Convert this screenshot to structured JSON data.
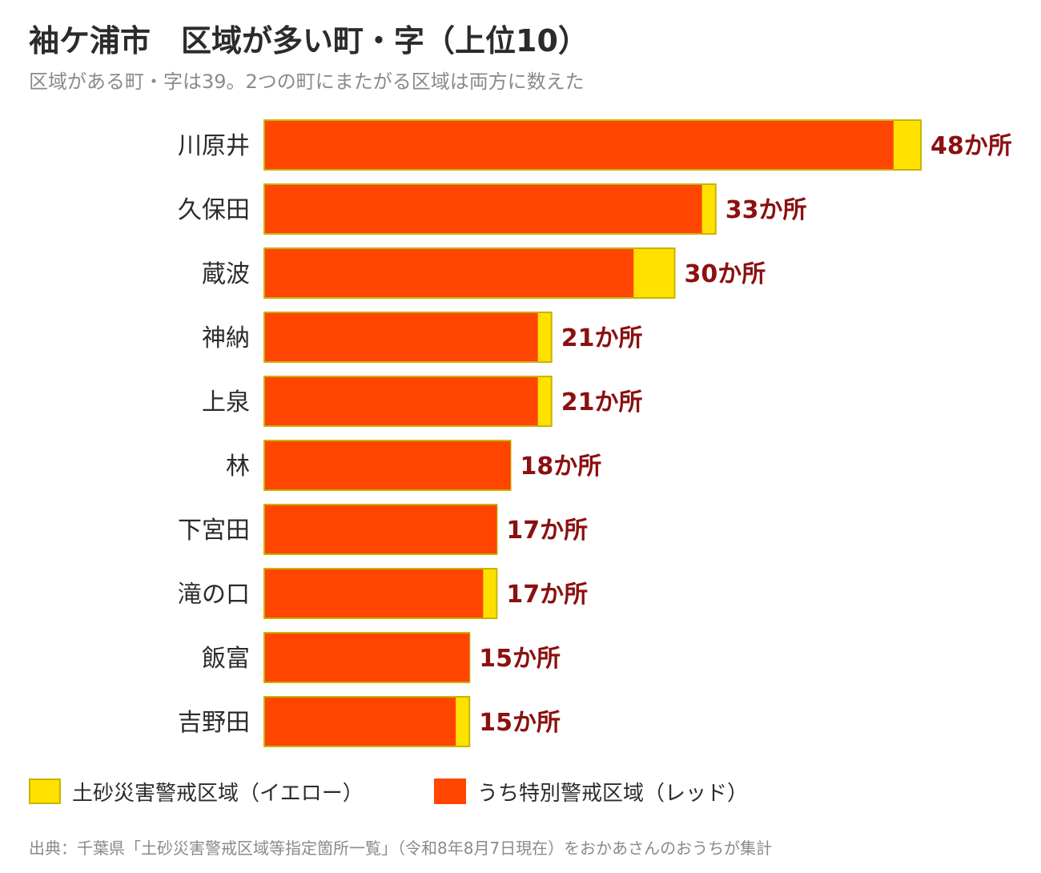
{
  "title": "袖ケ浦市　区域が多い町・字（上位10）",
  "subtitle": "区域がある町・字は39。2つの町にまたがる区域は両方に数えた",
  "legend": {
    "yellow_label": "土砂災害警戒区域（イエロー）",
    "red_label": "うち特別警戒区域（レッド）"
  },
  "colors": {
    "yellow": "#FFE100",
    "red": "#FF4500",
    "yellow_border": "#C8B400",
    "value_label": "#8B1010",
    "text": "#2b2b2b",
    "muted": "#8a8a8a"
  },
  "source": "出典：千葉県「土砂災害警戒区域等指定箇所一覧」（令和8年8月7日現在）をおかあさんのおうちが集計",
  "chart_data": {
    "type": "bar",
    "orientation": "horizontal",
    "stacked": true,
    "categories": [
      "川原井",
      "久保田",
      "蔵波",
      "神納",
      "上泉",
      "林",
      "下宮田",
      "滝の口",
      "飯富",
      "吉野田"
    ],
    "series": [
      {
        "name": "うち特別警戒区域（レッド）",
        "values": [
          46,
          32,
          27,
          20,
          20,
          18,
          17,
          16,
          15,
          14
        ]
      },
      {
        "name": "土砂災害警戒区域（イエロー）",
        "values": [
          2,
          1,
          3,
          1,
          1,
          0,
          0,
          1,
          0,
          1
        ]
      }
    ],
    "totals": [
      48,
      33,
      30,
      21,
      21,
      18,
      17,
      17,
      15,
      15
    ],
    "value_suffix": "か所",
    "xlim": [
      0,
      48
    ],
    "grid": false
  }
}
